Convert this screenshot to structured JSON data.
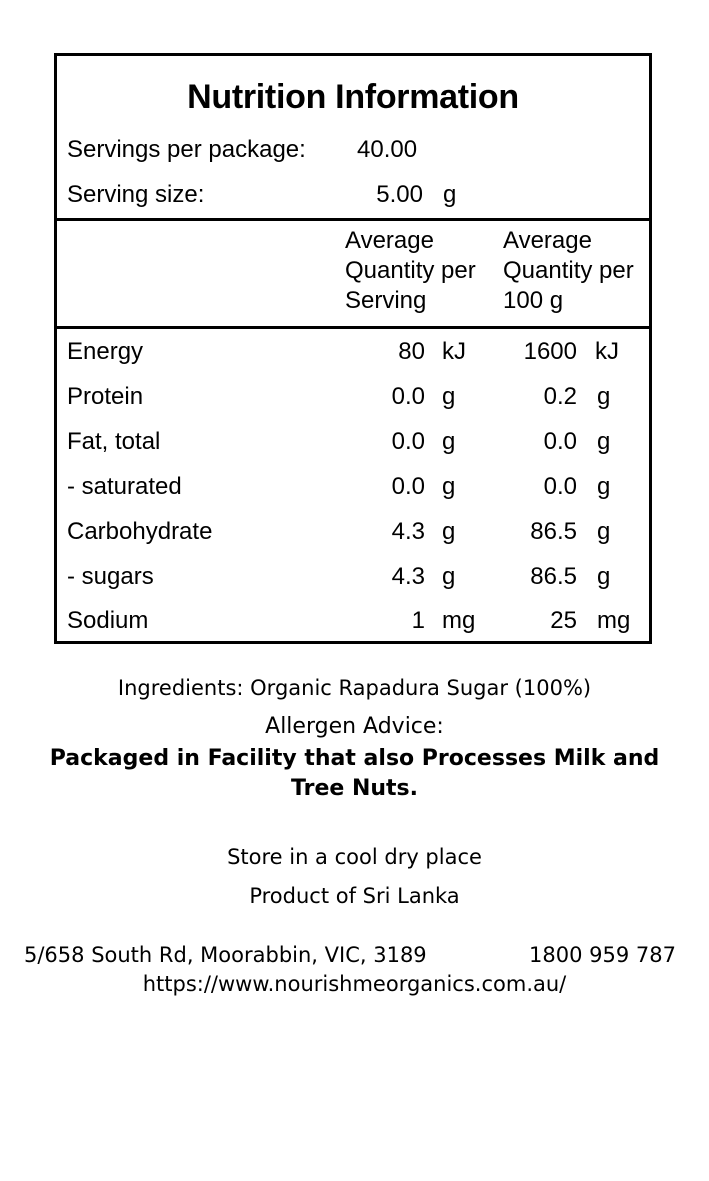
{
  "panel": {
    "title": "Nutrition Information",
    "servings_label": "Servings per package:",
    "servings_value": "40.00",
    "serving_size_label": "Serving size:",
    "serving_size_value": "5.00",
    "serving_size_unit": "g",
    "col1_header": [
      "Average",
      "Quantity per",
      "Serving"
    ],
    "col2_header": [
      "Average",
      "Quantity per",
      "100 g"
    ],
    "rows": [
      {
        "name": "Energy",
        "serving": "80",
        "serving_unit": "kJ",
        "per100": "1600",
        "per100_unit": "kJ"
      },
      {
        "name": "Protein",
        "serving": "0.0",
        "serving_unit": "g",
        "per100": "0.2",
        "per100_unit": "g"
      },
      {
        "name": "Fat, total",
        "serving": "0.0",
        "serving_unit": "g",
        "per100": "0.0",
        "per100_unit": "g"
      },
      {
        "name": "- saturated",
        "serving": "0.0",
        "serving_unit": "g",
        "per100": "0.0",
        "per100_unit": "g"
      },
      {
        "name": "Carbohydrate",
        "serving": "4.3",
        "serving_unit": "g",
        "per100": "86.5",
        "per100_unit": "g"
      },
      {
        "name": "- sugars",
        "serving": "4.3",
        "serving_unit": "g",
        "per100": "86.5",
        "per100_unit": "g"
      },
      {
        "name": "Sodium",
        "serving": "1",
        "serving_unit": "mg",
        "per100": "25",
        "per100_unit": "mg"
      }
    ]
  },
  "ingredients": "Ingredients: Organic Rapadura Sugar (100%)",
  "allergen": {
    "title": "Allergen Advice:",
    "line1": "Packaged in Facility that also Processes Milk and",
    "line2": "Tree Nuts."
  },
  "storage": "Store in a cool dry place",
  "origin": "Product of Sri Lanka",
  "address": "5/658 South Rd, Moorabbin, VIC, 3189",
  "phone": "1800 959 787",
  "website": "https://www.nourishmeorganics.com.au/"
}
